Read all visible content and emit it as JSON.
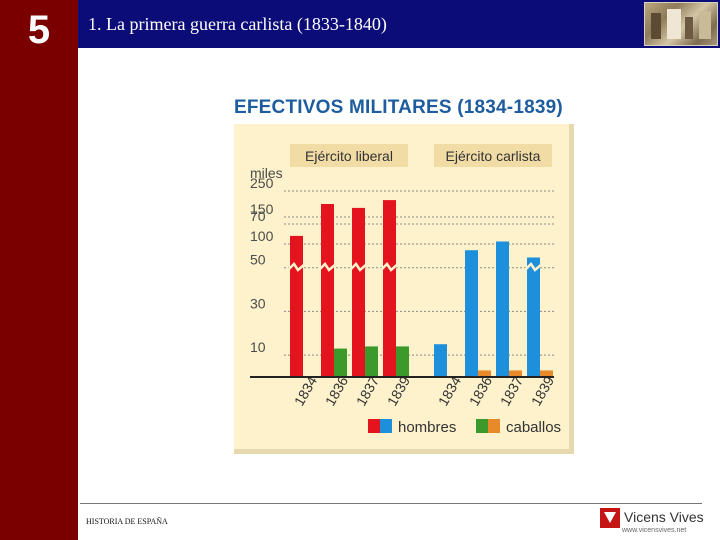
{
  "slide": {
    "chapter_number": "5",
    "title": "1. La primera guerra carlista (1833-1840)",
    "footer": "HISTORIA DE ESPAÑA"
  },
  "brand": {
    "name": "Vicens Vives",
    "url": "www.vicensvives.net"
  },
  "colors": {
    "sidebar": "#7a0000",
    "header": "#0c0c78",
    "panel": "#fdf2cc",
    "title": "#1d5c9e",
    "label_bg": "#f1dca6",
    "red": "#e3141d",
    "blue": "#1e8fda",
    "green": "#3c9a2d",
    "orange": "#e98a2a"
  },
  "chart_data": {
    "type": "bar",
    "title": "EFECTIVOS MILITARES (1834-1839)",
    "unit_label": "miles",
    "y_ticks": [
      10,
      30,
      50,
      70,
      100,
      150,
      250
    ],
    "axis_break": "between 70 and 100",
    "groups": [
      {
        "name": "Ejército liberal",
        "categories": [
          "1834",
          "1836",
          "1837",
          "1839"
        ],
        "series": [
          {
            "name": "hombres",
            "color": "red",
            "values": [
              115,
              200,
              185,
              215
            ]
          },
          {
            "name": "caballos",
            "color": "green",
            "values": [
              13,
              14,
              14
            ]
          }
        ],
        "caballos_categories": [
          "1836",
          "1837",
          "1839"
        ]
      },
      {
        "name": "Ejército carlista",
        "categories": [
          "1834",
          "1836",
          "1837",
          "1839"
        ],
        "series": [
          {
            "name": "hombres",
            "color": "blue",
            "values": [
              15,
              58,
              62,
              75
            ]
          },
          {
            "name": "caballos",
            "color": "orange",
            "values": [
              3,
              3,
              3
            ]
          }
        ],
        "caballos_categories": [
          "1836",
          "1837",
          "1839"
        ]
      }
    ],
    "legend": [
      {
        "label": "hombres",
        "colors": [
          "red",
          "blue"
        ]
      },
      {
        "label": "caballos",
        "colors": [
          "green",
          "orange"
        ]
      }
    ]
  }
}
